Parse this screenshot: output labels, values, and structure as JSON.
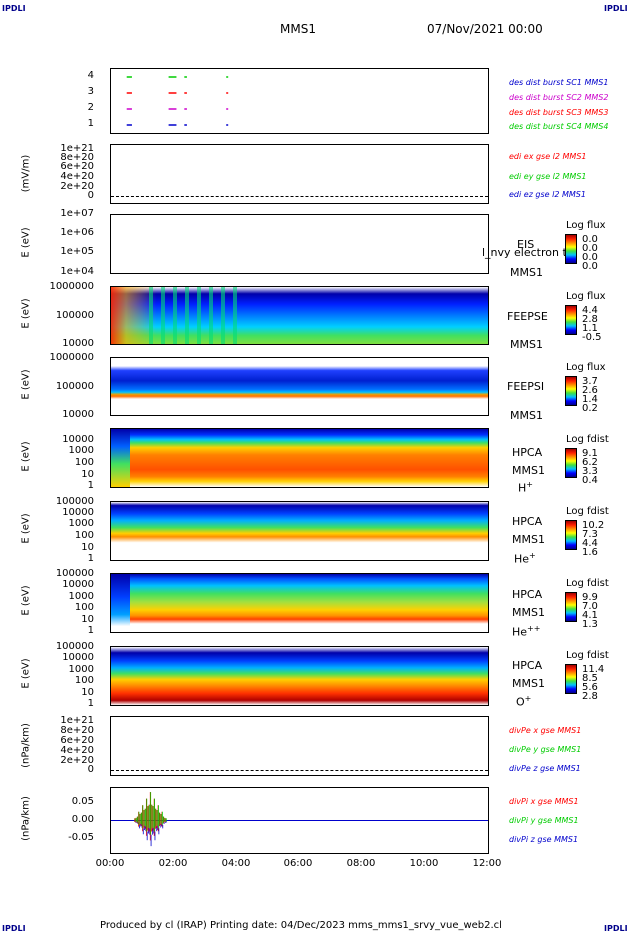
{
  "header": {
    "corner_label": "IPDLI",
    "spacecraft": "MMS1",
    "datetime": "07/Nov/2021 00:00"
  },
  "footer": {
    "text": "Produced by cl (IRAP)    Printing date: 04/Dec/2023    mms_mms1_srvy_vue_web2.cl"
  },
  "colors": {
    "sc1": "#0000cc",
    "sc2": "#cc00cc",
    "sc3": "#ff0000",
    "sc4": "#00cc00"
  },
  "panels": {
    "burst": {
      "ticks": [
        "4",
        "3",
        "2",
        "1"
      ],
      "legend": [
        "des dist burst SC1 MMS1",
        "des dist burst SC2 MMS2",
        "des dist burst SC3 MMS3",
        "des dist burst SC4 MMS4"
      ]
    },
    "edi": {
      "ylabel": "(mV/m)",
      "ticks": [
        "1e+21",
        "8e+20",
        "6e+20",
        "4e+20",
        "2e+20",
        "0"
      ],
      "legend": [
        "edi ex gse l2 MMS1",
        "edi ey gse l2 MMS1",
        "edi ez gse l2 MMS1"
      ]
    },
    "eis": {
      "ylabel": "E (eV)",
      "ticks": [
        "1e+07",
        "1e+06",
        "1e+05",
        "1e+04"
      ],
      "side": [
        "EIS",
        "MMS1"
      ],
      "overlay": "l_nvy electron to",
      "cb_title": "Log flux",
      "cb_vals": [
        "0.0",
        "0.0",
        "0.0",
        "0.0"
      ]
    },
    "feepse": {
      "ylabel": "E (eV)",
      "ticks": [
        "1000000",
        "100000",
        "10000"
      ],
      "side": [
        "FEEPSE",
        "MMS1"
      ],
      "cb_title": "Log flux",
      "cb_vals": [
        "4.4",
        "2.8",
        "1.1",
        "-0.5"
      ]
    },
    "feepsi": {
      "ylabel": "E (eV)",
      "ticks": [
        "1000000",
        "100000",
        "10000"
      ],
      "side": [
        "FEEPSI",
        "MMS1"
      ],
      "cb_title": "Log flux",
      "cb_vals": [
        "3.7",
        "2.6",
        "1.4",
        "0.2"
      ]
    },
    "hpca_h": {
      "ylabel": "E (eV)",
      "ticks": [
        "10000",
        "1000",
        "100",
        "10",
        "1"
      ],
      "side": [
        "HPCA",
        "MMS1"
      ],
      "ion": "H",
      "ion_sup": "+",
      "cb_title": "Log fdist",
      "cb_vals": [
        "9.1",
        "6.2",
        "3.3",
        "0.4"
      ]
    },
    "hpca_he": {
      "ylabel": "E (eV)",
      "ticks": [
        "100000",
        "10000",
        "1000",
        "100",
        "10",
        "1"
      ],
      "side": [
        "HPCA",
        "MMS1"
      ],
      "ion": "He",
      "ion_sup": "+",
      "cb_title": "Log fdist",
      "cb_vals": [
        "10.2",
        "7.3",
        "4.4",
        "1.6"
      ]
    },
    "hpca_hepp": {
      "ylabel": "E (eV)",
      "ticks": [
        "100000",
        "10000",
        "1000",
        "100",
        "10",
        "1"
      ],
      "side": [
        "HPCA",
        "MMS1"
      ],
      "ion": "He",
      "ion_sup": "++",
      "cb_title": "Log fdist",
      "cb_vals": [
        "9.9",
        "7.0",
        "4.1",
        "1.3"
      ]
    },
    "hpca_o": {
      "ylabel": "E (eV)",
      "ticks": [
        "100000",
        "10000",
        "1000",
        "100",
        "10",
        "1"
      ],
      "side": [
        "HPCA",
        "MMS1"
      ],
      "ion": "O",
      "ion_sup": "+",
      "cb_title": "Log fdist",
      "cb_vals": [
        "11.4",
        "8.5",
        "5.6",
        "2.8"
      ]
    },
    "divpe": {
      "ylabel": "(nPa/km)",
      "ticks": [
        "1e+21",
        "8e+20",
        "6e+20",
        "4e+20",
        "2e+20",
        "0"
      ],
      "legend": [
        "divPe x gse MMS1",
        "divPe y gse MMS1",
        "divPe z gse MMS1"
      ]
    },
    "divpi": {
      "ylabel": "(nPa/km)",
      "ticks": [
        "0.05",
        "0.00",
        "-0.05"
      ],
      "legend": [
        "divPi x gse MMS1",
        "divPi y gse MMS1",
        "divPi z gse MMS1"
      ]
    }
  },
  "xaxis": {
    "ticks": [
      "00:00",
      "02:00",
      "04:00",
      "06:00",
      "08:00",
      "10:00",
      "12:00"
    ]
  },
  "chart_data": {
    "type": "heatmap",
    "title": "MMS1  07/Nov/2021 00:00",
    "x_range": [
      "00:00",
      "12:00"
    ],
    "burst_intervals": [
      {
        "sc": 1,
        "segments": [
          [
            "00:30",
            "00:40"
          ],
          [
            "01:50",
            "02:05"
          ],
          [
            "02:20",
            "02:25"
          ],
          [
            "03:40",
            "03:42"
          ]
        ]
      },
      {
        "sc": 2,
        "segments": [
          [
            "00:30",
            "00:40"
          ],
          [
            "01:50",
            "02:05"
          ],
          [
            "02:20",
            "02:25"
          ],
          [
            "03:40",
            "03:42"
          ]
        ]
      },
      {
        "sc": 3,
        "segments": [
          [
            "00:30",
            "00:40"
          ],
          [
            "01:50",
            "02:05"
          ],
          [
            "02:20",
            "02:25"
          ],
          [
            "03:40",
            "03:42"
          ]
        ]
      },
      {
        "sc": 4,
        "segments": [
          [
            "00:30",
            "00:40"
          ],
          [
            "01:50",
            "02:05"
          ],
          [
            "02:20",
            "02:25"
          ],
          [
            "03:40",
            "03:42"
          ]
        ]
      }
    ],
    "divpi_ylim": [
      -0.08,
      0.08
    ],
    "divpi_peak_time": "01:15",
    "divpi_peak_value": 0.07
  }
}
